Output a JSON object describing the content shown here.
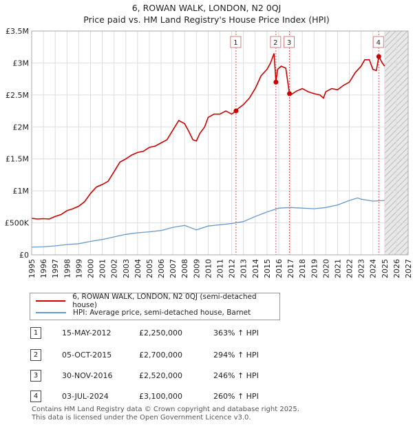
{
  "title_line1": "6, ROWAN WALK, LONDON, N2 0QJ",
  "title_line2": "Price paid vs. HM Land Registry's House Price Index (HPI)",
  "colors": {
    "property": "#cc0000",
    "hpi": "#6699cc",
    "marker_line": "#e05555",
    "grid": "#dddddd",
    "future_shade": "#e8e8e8"
  },
  "chart_data": {
    "type": "line",
    "x_range": [
      1995,
      2027
    ],
    "y_range": [
      0,
      3500000
    ],
    "x_ticks": [
      1995,
      1996,
      1997,
      1998,
      1999,
      2000,
      2001,
      2002,
      2003,
      2004,
      2005,
      2006,
      2007,
      2008,
      2009,
      2010,
      2011,
      2012,
      2013,
      2014,
      2015,
      2016,
      2017,
      2018,
      2019,
      2020,
      2021,
      2022,
      2023,
      2024,
      2025,
      2026,
      2027
    ],
    "y_ticks": [
      {
        "value": 0,
        "label": "£0"
      },
      {
        "value": 500000,
        "label": "£500K"
      },
      {
        "value": 1000000,
        "label": "£1M"
      },
      {
        "value": 1500000,
        "label": "£1.5M"
      },
      {
        "value": 2000000,
        "label": "£2M"
      },
      {
        "value": 2500000,
        "label": "£2.5M"
      },
      {
        "value": 3000000,
        "label": "£3M"
      },
      {
        "value": 3500000,
        "label": "£3.5M"
      }
    ],
    "future_from": 2025.0,
    "series": [
      {
        "name": "6, ROWAN WALK, LONDON, N2 0QJ (semi-detached house)",
        "color": "#cc0000",
        "points": [
          [
            1995.0,
            570000
          ],
          [
            1995.5,
            560000
          ],
          [
            1996.0,
            565000
          ],
          [
            1996.5,
            560000
          ],
          [
            1997.0,
            600000
          ],
          [
            1997.5,
            630000
          ],
          [
            1998.0,
            690000
          ],
          [
            1998.5,
            720000
          ],
          [
            1999.0,
            760000
          ],
          [
            1999.5,
            830000
          ],
          [
            2000.0,
            960000
          ],
          [
            2000.5,
            1060000
          ],
          [
            2001.0,
            1100000
          ],
          [
            2001.5,
            1150000
          ],
          [
            2002.0,
            1300000
          ],
          [
            2002.5,
            1450000
          ],
          [
            2003.0,
            1500000
          ],
          [
            2003.5,
            1560000
          ],
          [
            2004.0,
            1600000
          ],
          [
            2004.5,
            1620000
          ],
          [
            2005.0,
            1680000
          ],
          [
            2005.5,
            1700000
          ],
          [
            2006.0,
            1750000
          ],
          [
            2006.5,
            1800000
          ],
          [
            2007.0,
            1950000
          ],
          [
            2007.5,
            2100000
          ],
          [
            2008.0,
            2050000
          ],
          [
            2008.3,
            1950000
          ],
          [
            2008.7,
            1800000
          ],
          [
            2009.0,
            1780000
          ],
          [
            2009.3,
            1900000
          ],
          [
            2009.7,
            2000000
          ],
          [
            2010.0,
            2150000
          ],
          [
            2010.5,
            2200000
          ],
          [
            2011.0,
            2200000
          ],
          [
            2011.5,
            2250000
          ],
          [
            2012.0,
            2200000
          ],
          [
            2012.37,
            2250000
          ],
          [
            2012.5,
            2280000
          ],
          [
            2013.0,
            2350000
          ],
          [
            2013.5,
            2450000
          ],
          [
            2014.0,
            2600000
          ],
          [
            2014.5,
            2800000
          ],
          [
            2015.0,
            2900000
          ],
          [
            2015.3,
            3000000
          ],
          [
            2015.5,
            3100000
          ],
          [
            2015.6,
            3150000
          ],
          [
            2015.76,
            2700000
          ],
          [
            2015.9,
            2900000
          ],
          [
            2016.2,
            2950000
          ],
          [
            2016.6,
            2920000
          ],
          [
            2016.91,
            2520000
          ],
          [
            2017.0,
            2500000
          ],
          [
            2017.5,
            2560000
          ],
          [
            2018.0,
            2600000
          ],
          [
            2018.5,
            2550000
          ],
          [
            2019.0,
            2520000
          ],
          [
            2019.5,
            2500000
          ],
          [
            2019.8,
            2450000
          ],
          [
            2020.0,
            2550000
          ],
          [
            2020.5,
            2600000
          ],
          [
            2021.0,
            2580000
          ],
          [
            2021.5,
            2650000
          ],
          [
            2022.0,
            2700000
          ],
          [
            2022.5,
            2850000
          ],
          [
            2023.0,
            2950000
          ],
          [
            2023.3,
            3050000
          ],
          [
            2023.7,
            3050000
          ],
          [
            2024.0,
            2900000
          ],
          [
            2024.3,
            2880000
          ],
          [
            2024.5,
            3100000
          ],
          [
            2024.8,
            3000000
          ],
          [
            2025.0,
            2950000
          ]
        ]
      },
      {
        "name": "HPI: Average price, semi-detached house, Barnet",
        "color": "#6699cc",
        "points": [
          [
            1995.0,
            120000
          ],
          [
            1996.0,
            125000
          ],
          [
            1997.0,
            140000
          ],
          [
            1998.0,
            160000
          ],
          [
            1999.0,
            175000
          ],
          [
            2000.0,
            210000
          ],
          [
            2001.0,
            240000
          ],
          [
            2002.0,
            280000
          ],
          [
            2003.0,
            320000
          ],
          [
            2004.0,
            345000
          ],
          [
            2005.0,
            360000
          ],
          [
            2006.0,
            380000
          ],
          [
            2007.0,
            430000
          ],
          [
            2008.0,
            460000
          ],
          [
            2009.0,
            390000
          ],
          [
            2010.0,
            450000
          ],
          [
            2011.0,
            470000
          ],
          [
            2012.0,
            490000
          ],
          [
            2013.0,
            520000
          ],
          [
            2014.0,
            600000
          ],
          [
            2015.0,
            670000
          ],
          [
            2016.0,
            730000
          ],
          [
            2017.0,
            740000
          ],
          [
            2018.0,
            730000
          ],
          [
            2019.0,
            720000
          ],
          [
            2020.0,
            740000
          ],
          [
            2021.0,
            780000
          ],
          [
            2022.0,
            850000
          ],
          [
            2022.7,
            890000
          ],
          [
            2023.0,
            870000
          ],
          [
            2024.0,
            840000
          ],
          [
            2025.0,
            850000
          ]
        ]
      }
    ],
    "transactions": [
      {
        "num": "1",
        "x": 2012.37,
        "y": 2250000
      },
      {
        "num": "2",
        "x": 2015.76,
        "y": 2700000
      },
      {
        "num": "3",
        "x": 2016.91,
        "y": 2520000
      },
      {
        "num": "4",
        "x": 2024.5,
        "y": 3100000
      }
    ]
  },
  "legend": {
    "property_label": "6, ROWAN WALK, LONDON, N2 0QJ (semi-detached house)",
    "hpi_label": "HPI: Average price, semi-detached house, Barnet"
  },
  "table": [
    {
      "num": "1",
      "date": "15-MAY-2012",
      "price": "£2,250,000",
      "diff": "363% ↑ HPI"
    },
    {
      "num": "2",
      "date": "05-OCT-2015",
      "price": "£2,700,000",
      "diff": "294% ↑ HPI"
    },
    {
      "num": "3",
      "date": "30-NOV-2016",
      "price": "£2,520,000",
      "diff": "246% ↑ HPI"
    },
    {
      "num": "4",
      "date": "03-JUL-2024",
      "price": "£3,100,000",
      "diff": "260% ↑ HPI"
    }
  ],
  "footer_line1": "Contains HM Land Registry data © Crown copyright and database right 2025.",
  "footer_line2": "This data is licensed under the Open Government Licence v3.0."
}
